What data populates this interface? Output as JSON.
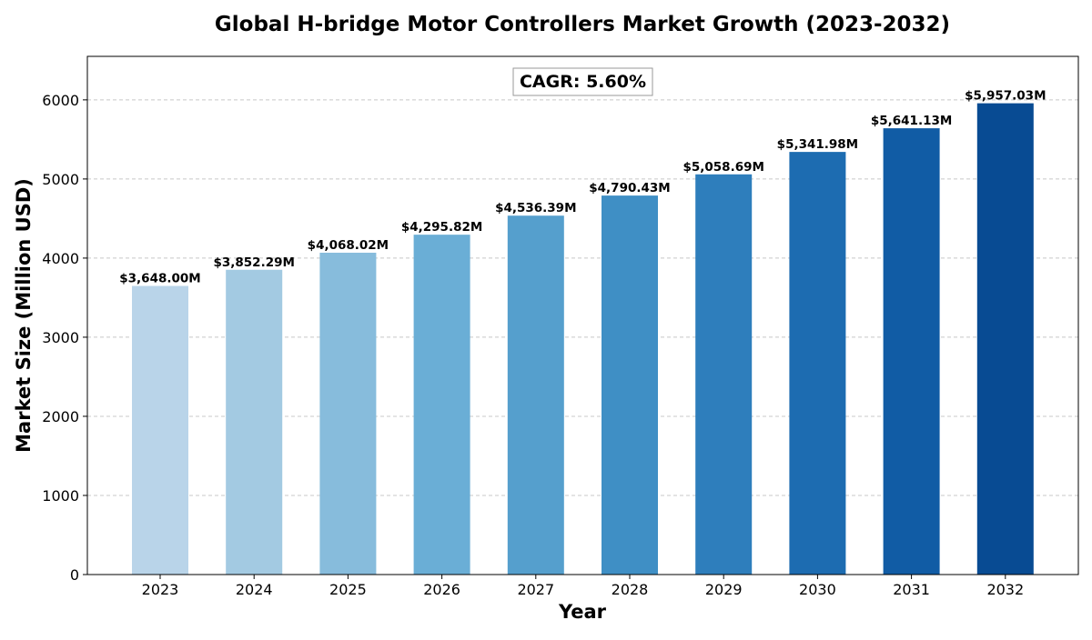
{
  "chart_data": {
    "type": "bar",
    "title": "Global H-bridge Motor Controllers Market Growth (2023-2032)",
    "xlabel": "Year",
    "ylabel": "Market Size (Million USD)",
    "categories": [
      "2023",
      "2024",
      "2025",
      "2026",
      "2027",
      "2028",
      "2029",
      "2030",
      "2031",
      "2032"
    ],
    "values": [
      3648.0,
      3852.29,
      4068.02,
      4295.82,
      4536.39,
      4790.43,
      5058.69,
      5341.98,
      5641.13,
      5957.03
    ],
    "value_labels": [
      "$3,648.00M",
      "$3,852.29M",
      "$4,068.02M",
      "$4,295.82M",
      "$4,536.39M",
      "$4,790.43M",
      "$5,058.69M",
      "$5,341.98M",
      "$5,641.13M",
      "$5,957.03M"
    ],
    "bar_colors": [
      "#b9d4e9",
      "#a3cae2",
      "#87bcdc",
      "#6aaed6",
      "#559fcd",
      "#3f8fc5",
      "#2e7ebc",
      "#1d6cb1",
      "#115ca5",
      "#084b93"
    ],
    "ylim": [
      0,
      6550
    ],
    "yticks": [
      0,
      1000,
      2000,
      3000,
      4000,
      5000,
      6000
    ],
    "grid": true,
    "grid_axis": "y",
    "annotation": "CAGR: 5.60%"
  }
}
